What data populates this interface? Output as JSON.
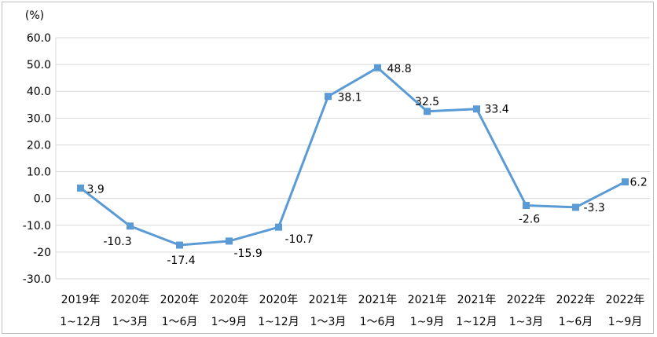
{
  "chart_data": {
    "type": "line",
    "unit": "(%)",
    "ylim": [
      -30,
      60
    ],
    "yticks": [
      "60.0",
      "50.0",
      "40.0",
      "30.0",
      "20.0",
      "10.0",
      "0.0",
      "-10.0",
      "-20",
      "-30.0"
    ],
    "grid": "horizontal",
    "categories": [
      [
        "2019年",
        "1~12月"
      ],
      [
        "2020年",
        "1～3月"
      ],
      [
        "2020年",
        "1～6月"
      ],
      [
        "2020年",
        "1～9月"
      ],
      [
        "2020年",
        "1~12月"
      ],
      [
        "2021年",
        "1～3月"
      ],
      [
        "2021年",
        "1～6月"
      ],
      [
        "2021年",
        "1~9月"
      ],
      [
        "2021年",
        "1~12月"
      ],
      [
        "2022年",
        "1~3月"
      ],
      [
        "2022年",
        "1~6月"
      ],
      [
        "2022年",
        "1~9月"
      ]
    ],
    "series": [
      {
        "values": [
          3.9,
          -10.3,
          -17.4,
          -15.9,
          -10.7,
          38.1,
          48.8,
          32.5,
          33.4,
          -2.6,
          -3.3,
          6.2
        ],
        "labels": [
          "3.9",
          "-10.3",
          "-17.4",
          "-15.9",
          "-10.7",
          "38.1",
          "48.8",
          "32.5",
          "33.4",
          "-2.6",
          "-3.3",
          "6.2"
        ],
        "color": "#5b9bd5"
      }
    ]
  }
}
